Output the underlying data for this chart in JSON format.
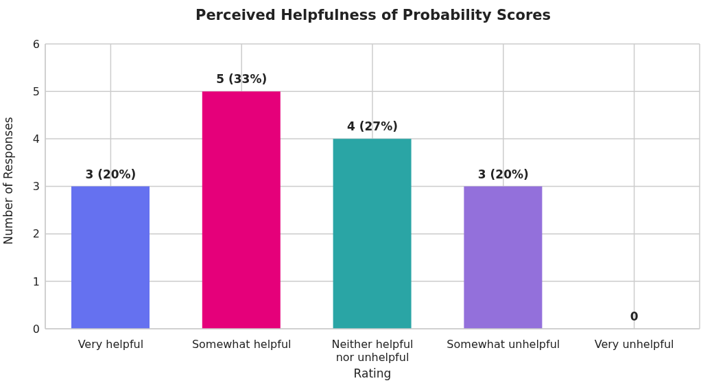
{
  "chart_data": {
    "type": "bar",
    "title": "Perceived Helpfulness of Probability Scores",
    "xlabel": "Rating",
    "ylabel": "Number of Responses",
    "categories": [
      "Very helpful",
      "Somewhat helpful",
      "Neither helpful nor unhelpful",
      "Somewhat unhelpful",
      "Very unhelpful"
    ],
    "values": [
      3,
      5,
      4,
      3,
      0
    ],
    "colors": [
      "#6571f0",
      "#e5007a",
      "#2aa5a5",
      "#9370db",
      "#f4a261"
    ],
    "value_labels": [
      "3 (20%)",
      "5 (33%)",
      "4 (27%)",
      "3 (20%)",
      "0"
    ],
    "ylim": [
      0,
      6
    ],
    "yticks": [
      0,
      1,
      2,
      3,
      4,
      5,
      6
    ],
    "grid": true
  }
}
